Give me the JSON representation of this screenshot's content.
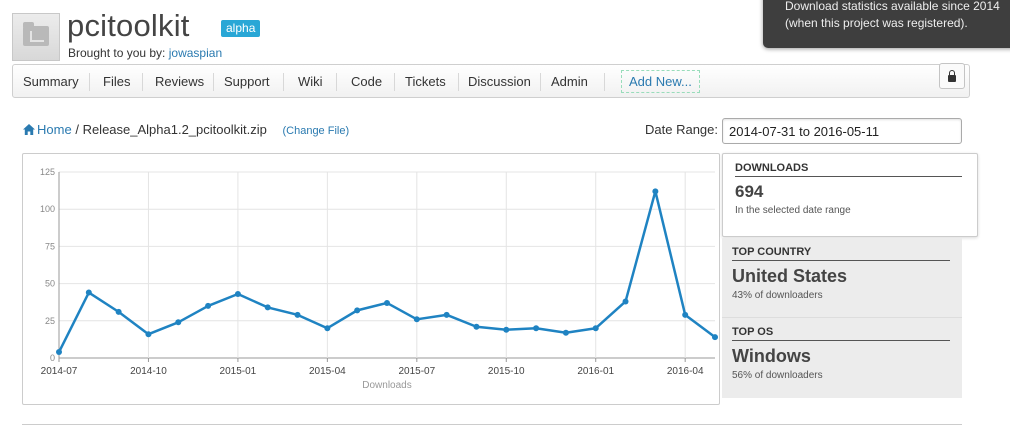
{
  "project": {
    "title": "pcitoolkit",
    "badge": "alpha",
    "byline_prefix": "Brought to you by:",
    "author": "jowaspian"
  },
  "tooltip": {
    "line1": "Download statistics available since 2014",
    "line2": "(when this project was registered)."
  },
  "nav": {
    "items": [
      "Summary",
      "Files",
      "Reviews",
      "Support",
      "Wiki",
      "Code",
      "Tickets",
      "Discussion",
      "Admin"
    ],
    "add_new": "Add New...",
    "lock_icon": "lock-icon"
  },
  "breadcrumb": {
    "home": "Home",
    "separator": "/",
    "file": "Release_Alpha1.2_pcitoolkit.zip",
    "change_file": "(Change File)"
  },
  "date_range": {
    "label": "Date Range:",
    "value": "2014-07-31 to 2016-05-11"
  },
  "stats": {
    "downloads": {
      "label": "DOWNLOADS",
      "value": "694",
      "sub": "In the selected date range"
    },
    "country": {
      "label": "TOP COUNTRY",
      "value": "United States",
      "sub": "43% of downloaders"
    },
    "os": {
      "label": "TOP OS",
      "value": "Windows",
      "sub": "56% of downloaders"
    }
  },
  "chart_data": {
    "type": "line",
    "xlabel": "Downloads",
    "ylim": [
      0,
      125
    ],
    "yticks": [
      0,
      25,
      50,
      75,
      100,
      125
    ],
    "xticks": [
      "2014-07",
      "2014-10",
      "2015-01",
      "2015-04",
      "2015-07",
      "2015-10",
      "2016-01",
      "2016-04"
    ],
    "x": [
      "2014-07",
      "2014-08",
      "2014-09",
      "2014-10",
      "2014-11",
      "2014-12",
      "2015-01",
      "2015-02",
      "2015-03",
      "2015-04",
      "2015-05",
      "2015-06",
      "2015-07",
      "2015-08",
      "2015-09",
      "2015-10",
      "2015-11",
      "2015-12",
      "2016-01",
      "2016-02",
      "2016-03",
      "2016-04",
      "2016-05"
    ],
    "series": [
      {
        "values": [
          4,
          44,
          31,
          16,
          24,
          35,
          43,
          34,
          29,
          20,
          32,
          37,
          26,
          29,
          21,
          19,
          20,
          17,
          20,
          38,
          112,
          29,
          14
        ]
      }
    ],
    "grid": true,
    "line_color": "#1f83c2"
  }
}
